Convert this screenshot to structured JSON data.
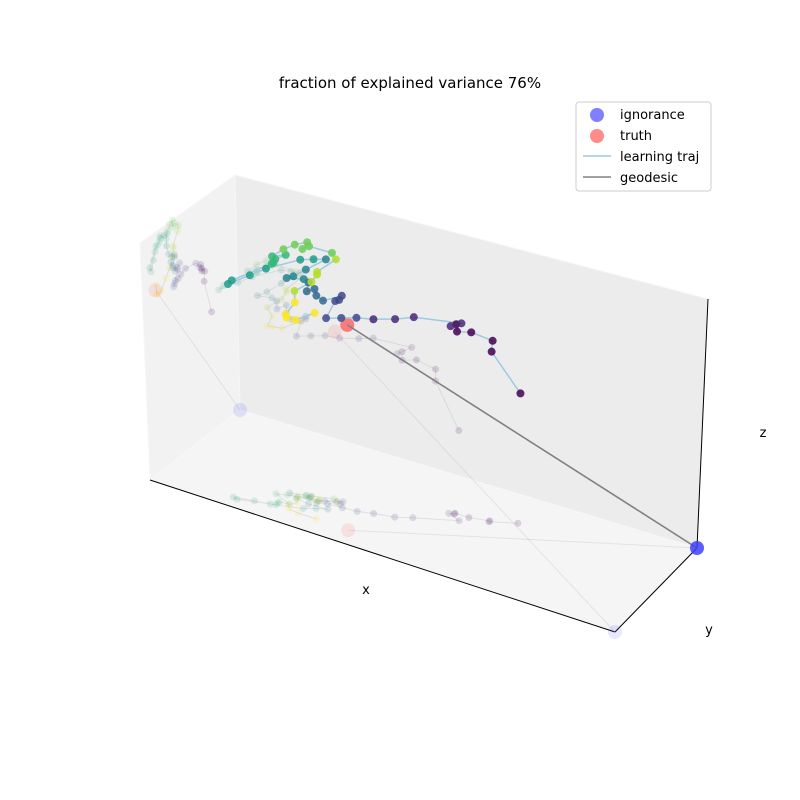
{
  "chart_data": {
    "type": "scatter",
    "projection": "3d",
    "title": "fraction of explained variance 76%",
    "xlabel": "x",
    "ylabel": "y",
    "zlabel": "z",
    "xlim": [
      0,
      1
    ],
    "ylim": [
      0,
      1
    ],
    "zlim": [
      0,
      1
    ],
    "grid": false,
    "legend_position": "top-right",
    "colormap": "viridis",
    "series": [
      {
        "name": "ignorance",
        "kind": "point",
        "color": "#3b3bff",
        "points": [
          [
            1.0,
            0.0,
            0.0
          ]
        ]
      },
      {
        "name": "truth",
        "kind": "point",
        "color": "#ff4d4d",
        "points": [
          [
            0.14,
            0.6,
            0.76
          ]
        ]
      },
      {
        "name": "learning traj",
        "kind": "line",
        "color": "#9ecae1",
        "points": [
          [
            0.72,
            0.34,
            0.5
          ],
          [
            0.65,
            0.39,
            0.65
          ],
          [
            0.66,
            0.39,
            0.69
          ],
          [
            0.63,
            0.43,
            0.71
          ],
          [
            0.63,
            0.46,
            0.7
          ],
          [
            0.62,
            0.46,
            0.73
          ],
          [
            0.61,
            0.47,
            0.72
          ],
          [
            0.57,
            0.44,
            0.75
          ],
          [
            0.46,
            0.52,
            0.76
          ],
          [
            0.41,
            0.55,
            0.75
          ],
          [
            0.38,
            0.59,
            0.74
          ],
          [
            0.35,
            0.62,
            0.74
          ],
          [
            0.34,
            0.65,
            0.73
          ],
          [
            0.33,
            0.68,
            0.72
          ],
          [
            0.38,
            0.67,
            0.78
          ],
          [
            0.37,
            0.66,
            0.79
          ],
          [
            0.4,
            0.66,
            0.8
          ],
          [
            0.35,
            0.69,
            0.78
          ],
          [
            0.33,
            0.7,
            0.8
          ],
          [
            0.31,
            0.7,
            0.83
          ],
          [
            0.33,
            0.72,
            0.81
          ],
          [
            0.35,
            0.72,
            0.84
          ],
          [
            0.35,
            0.73,
            0.85
          ],
          [
            0.32,
            0.76,
            0.85
          ],
          [
            0.29,
            0.74,
            0.87
          ],
          [
            0.27,
            0.71,
            0.91
          ],
          [
            0.28,
            0.67,
            0.96
          ],
          [
            0.25,
            0.69,
            0.96
          ],
          [
            0.21,
            0.71,
            0.96
          ],
          [
            0.15,
            0.77,
            0.92
          ],
          [
            0.13,
            0.8,
            0.89
          ],
          [
            0.1,
            0.84,
            0.85
          ],
          [
            0.09,
            0.83,
            0.87
          ],
          [
            0.16,
            0.76,
            0.94
          ],
          [
            0.18,
            0.76,
            0.94
          ],
          [
            0.2,
            0.76,
            0.95
          ],
          [
            0.21,
            0.74,
            0.97
          ],
          [
            0.27,
            0.78,
            0.94
          ],
          [
            0.29,
            0.76,
            0.97
          ],
          [
            0.31,
            0.74,
            0.99
          ],
          [
            0.34,
            0.72,
            1.0
          ],
          [
            0.34,
            0.73,
            0.97
          ],
          [
            0.36,
            0.72,
            0.98
          ],
          [
            0.4,
            0.68,
            0.96
          ],
          [
            0.39,
            0.67,
            0.94
          ],
          [
            0.34,
            0.7,
            0.89
          ],
          [
            0.34,
            0.7,
            0.88
          ],
          [
            0.33,
            0.71,
            0.85
          ],
          [
            0.3,
            0.74,
            0.81
          ],
          [
            0.25,
            0.73,
            0.78
          ],
          [
            0.2,
            0.74,
            0.74
          ],
          [
            0.16,
            0.73,
            0.74
          ],
          [
            0.15,
            0.71,
            0.74
          ],
          [
            0.15,
            0.67,
            0.78
          ]
        ]
      },
      {
        "name": "geodesic",
        "kind": "line",
        "color": "#808080",
        "points": [
          [
            1.0,
            0.0,
            0.0
          ],
          [
            0.14,
            0.6,
            0.76
          ]
        ]
      }
    ]
  },
  "legend": {
    "items": [
      {
        "label": "ignorance",
        "marker": "circle",
        "color": "#3b3bff"
      },
      {
        "label": "truth",
        "marker": "circle",
        "color": "#ff4d4d"
      },
      {
        "label": "learning traj",
        "marker": "line",
        "color": "#9ecae1"
      },
      {
        "label": "geodesic",
        "marker": "line",
        "color": "#808080"
      }
    ]
  }
}
